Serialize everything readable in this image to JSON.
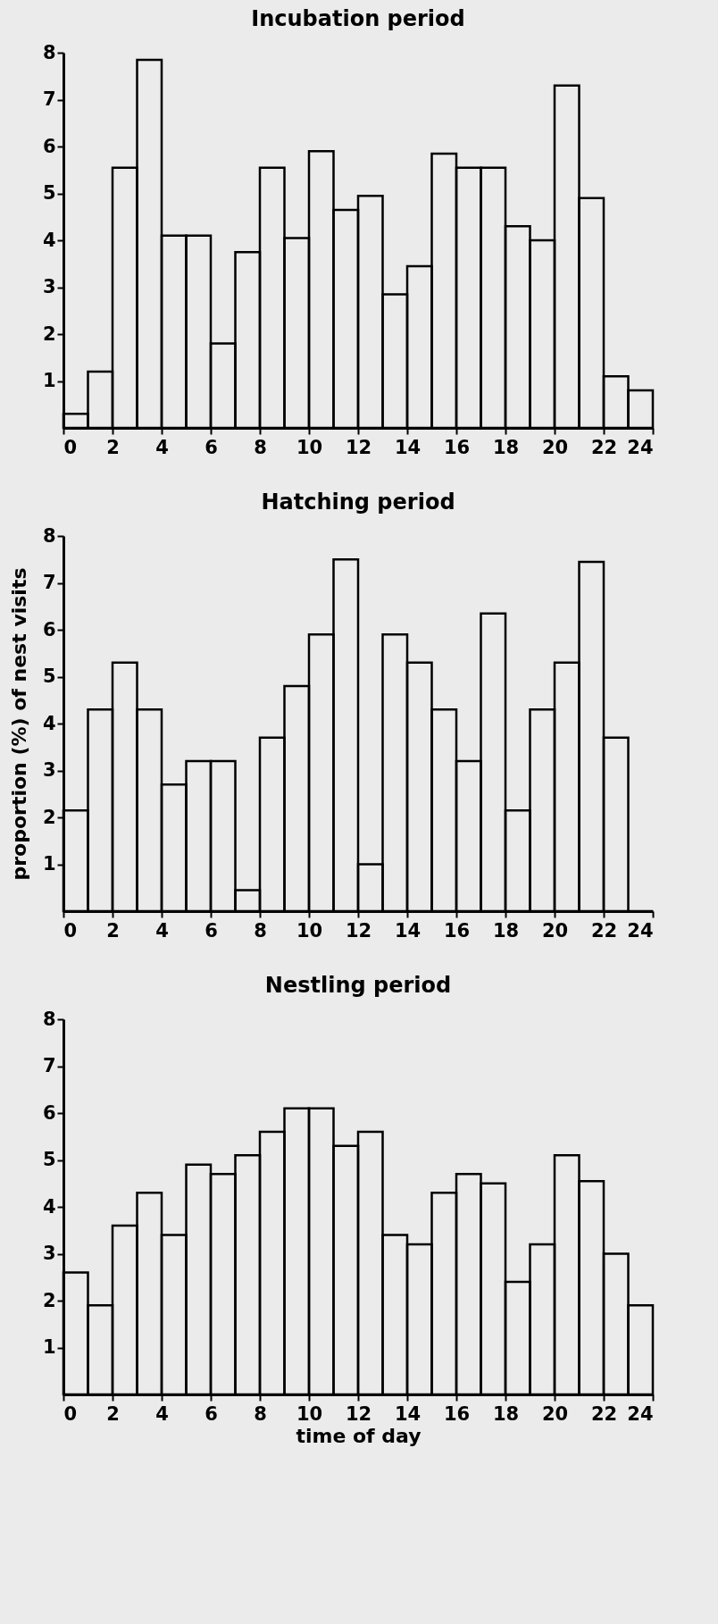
{
  "chart_data": [
    {
      "type": "histogram",
      "title": "Incubation period",
      "color": "#000000",
      "bins": [
        0,
        1,
        2,
        3,
        4,
        5,
        6,
        7,
        8,
        9,
        10,
        11,
        12,
        13,
        14,
        15,
        16,
        17,
        18,
        19,
        20,
        21,
        22,
        23,
        24
      ],
      "values": [
        0.3,
        1.2,
        5.55,
        7.85,
        4.1,
        4.1,
        1.8,
        3.75,
        5.55,
        4.05,
        5.9,
        4.65,
        4.95,
        2.85,
        3.45,
        5.85,
        5.55,
        5.55,
        4.3,
        4.0,
        7.3,
        4.9,
        1.1,
        0.8
      ],
      "xlim": [
        0,
        24
      ],
      "xticks": [
        0,
        2,
        4,
        6,
        8,
        10,
        12,
        14,
        16,
        18,
        20,
        22,
        24
      ],
      "ylim": [
        0,
        8
      ],
      "yticks": [
        1,
        2,
        3,
        4,
        5,
        6,
        7,
        8
      ]
    },
    {
      "type": "histogram",
      "title": "Hatching period",
      "ylabel": "proportion (%) of nest visits",
      "color": "#000000",
      "bins": [
        0,
        1,
        2,
        3,
        4,
        5,
        6,
        7,
        8,
        9,
        10,
        11,
        12,
        13,
        14,
        15,
        16,
        17,
        18,
        19,
        20,
        21,
        22,
        23,
        24
      ],
      "values": [
        2.15,
        4.3,
        5.3,
        4.3,
        2.7,
        3.2,
        3.2,
        0.45,
        3.7,
        4.8,
        5.9,
        7.5,
        1.0,
        5.9,
        5.3,
        4.3,
        3.2,
        6.35,
        2.15,
        4.3,
        5.3,
        7.45,
        3.7,
        0
      ],
      "xlim": [
        0,
        24
      ],
      "xticks": [
        0,
        2,
        4,
        6,
        8,
        10,
        12,
        14,
        16,
        18,
        20,
        22,
        24
      ],
      "ylim": [
        0,
        8
      ],
      "yticks": [
        1,
        2,
        3,
        4,
        5,
        6,
        7,
        8
      ]
    },
    {
      "type": "histogram",
      "title": "Nestling period",
      "xlabel": "time of day",
      "color": "#000000",
      "bins": [
        0,
        1,
        2,
        3,
        4,
        5,
        6,
        7,
        8,
        9,
        10,
        11,
        12,
        13,
        14,
        15,
        16,
        17,
        18,
        19,
        20,
        21,
        22,
        23,
        24
      ],
      "values": [
        2.6,
        1.9,
        3.6,
        4.3,
        3.4,
        4.9,
        4.7,
        5.1,
        5.6,
        6.1,
        6.1,
        5.3,
        5.6,
        3.4,
        3.2,
        4.3,
        4.7,
        4.5,
        2.4,
        3.2,
        5.1,
        4.55,
        3.0,
        1.9
      ],
      "xlim": [
        0,
        24
      ],
      "xticks": [
        0,
        2,
        4,
        6,
        8,
        10,
        12,
        14,
        16,
        18,
        20,
        22,
        24
      ],
      "ylim": [
        0,
        8
      ],
      "yticks": [
        1,
        2,
        3,
        4,
        5,
        6,
        7,
        8
      ]
    }
  ]
}
